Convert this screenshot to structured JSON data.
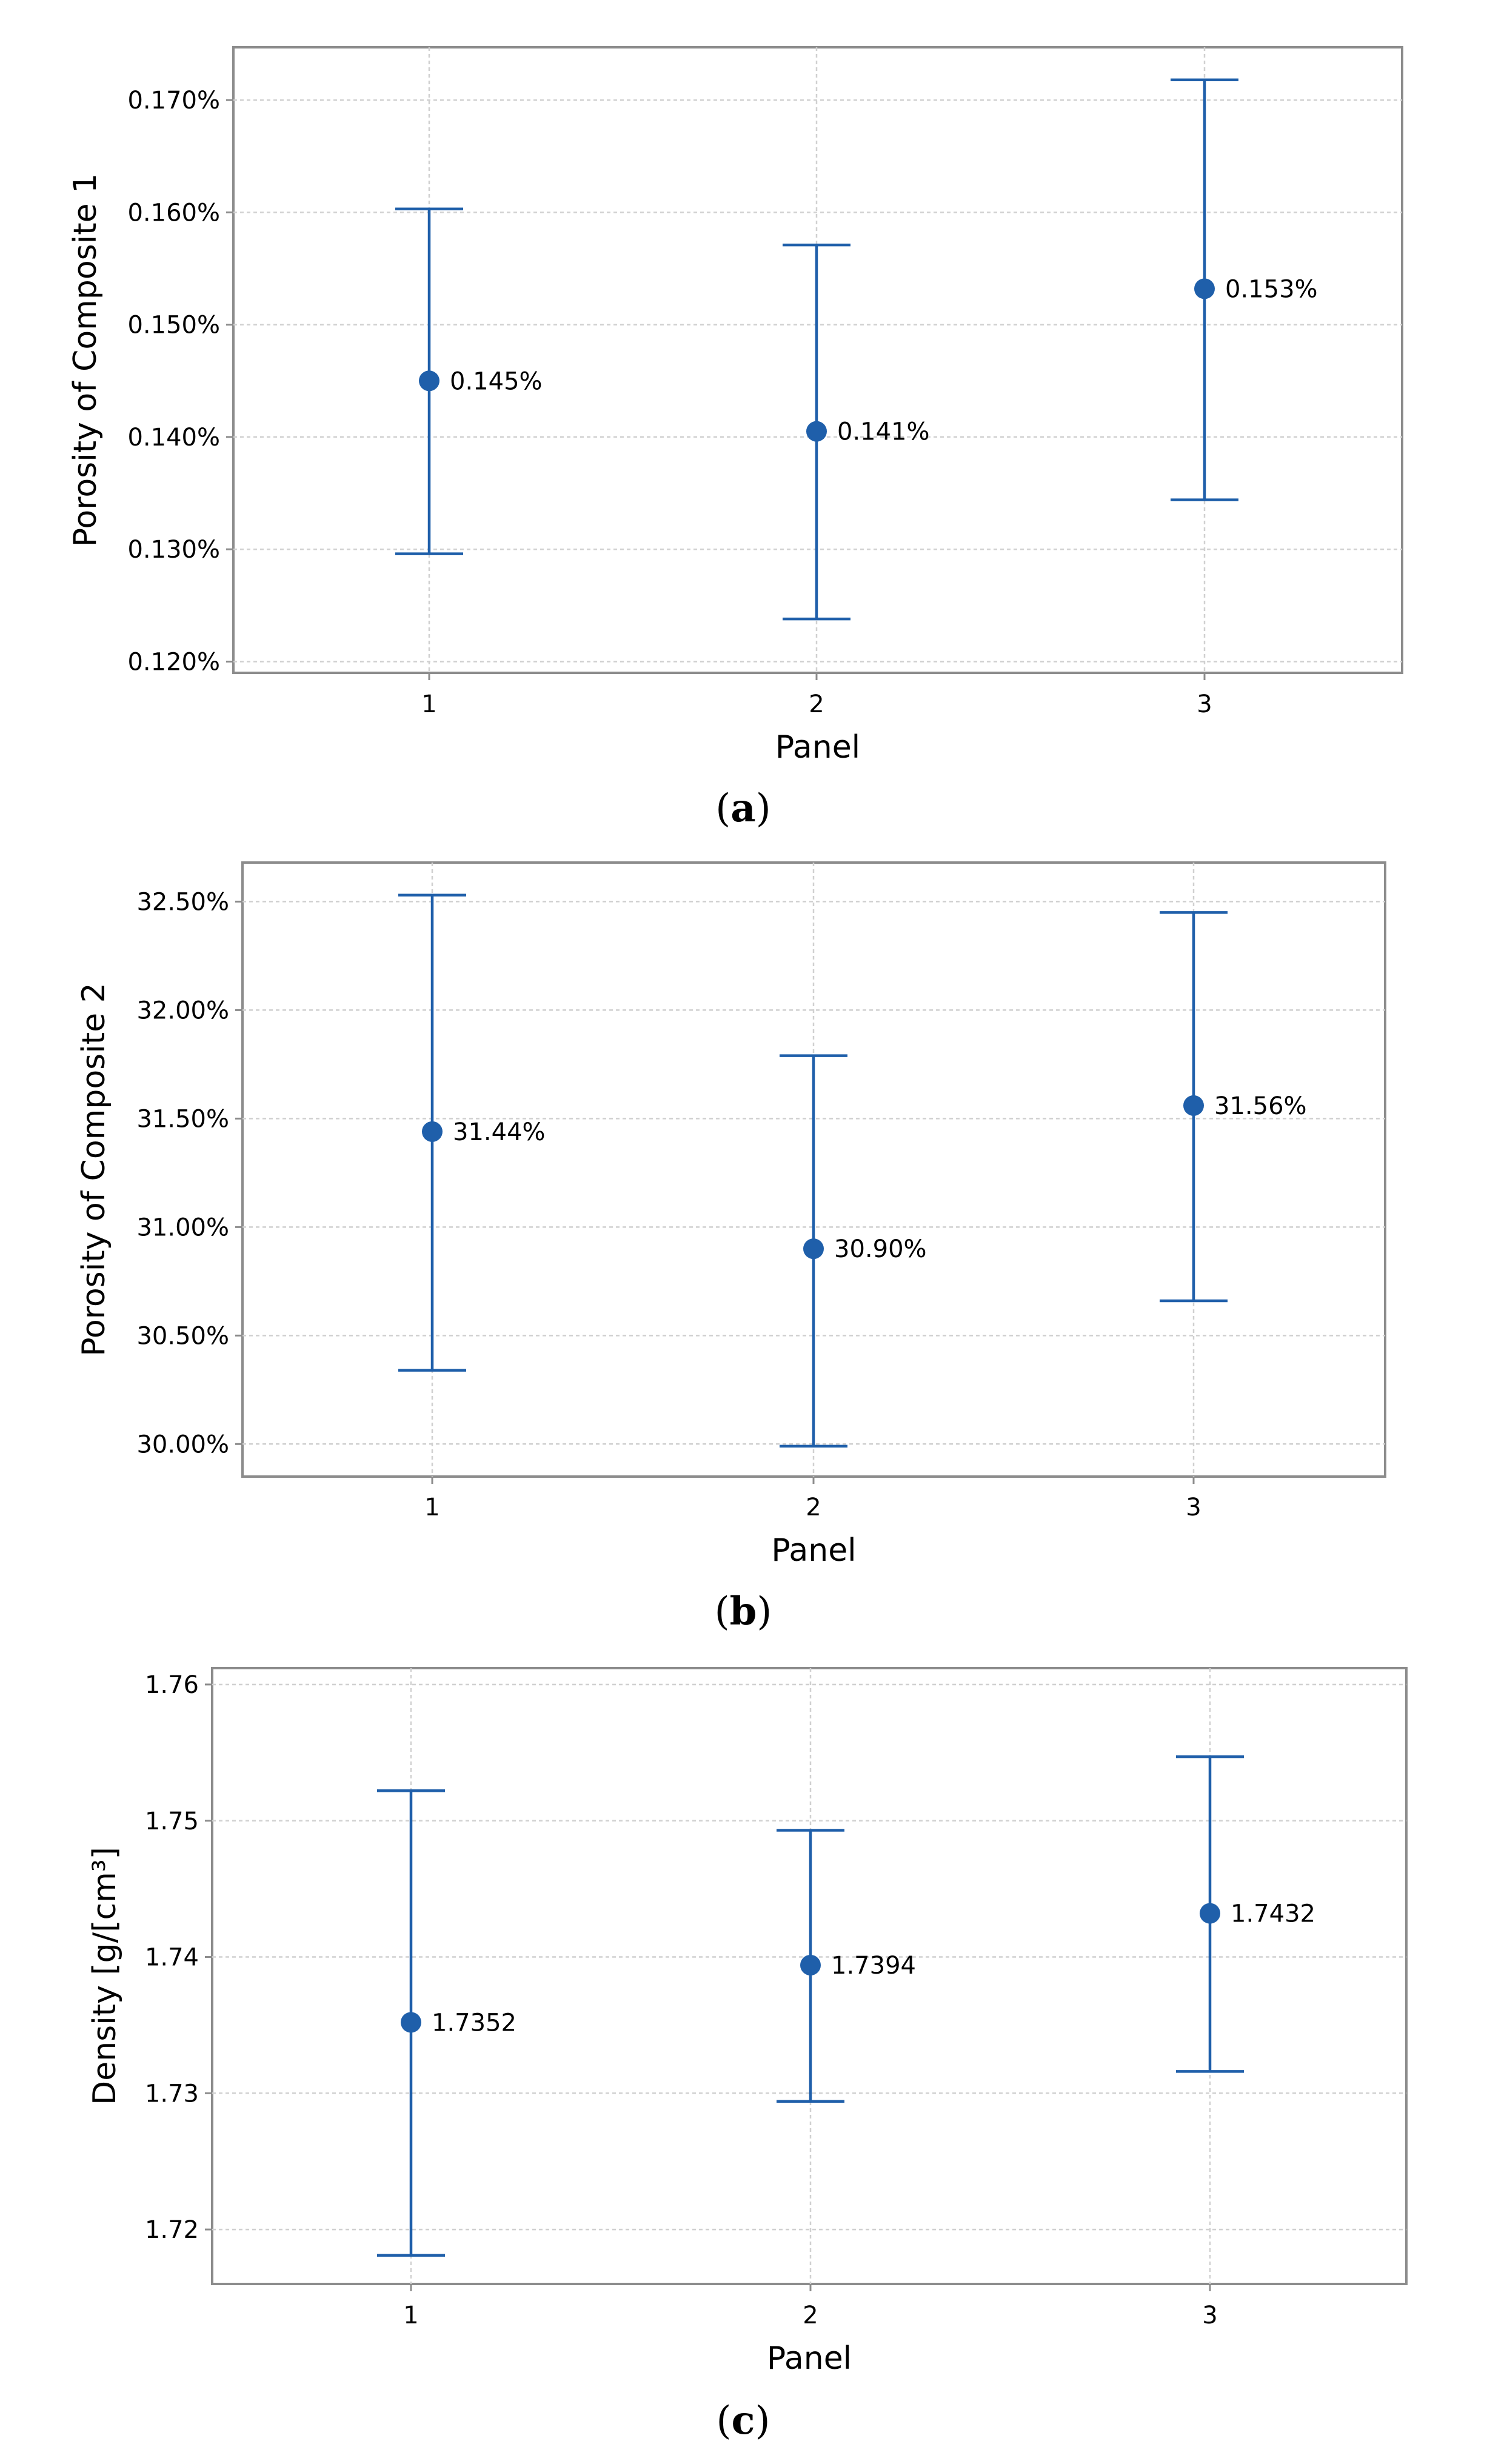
{
  "chart_data": [
    {
      "type": "scatter",
      "caption_letter": "a",
      "xlabel": "Panel",
      "ylabel": "Porosity of Composite 1",
      "categories": [
        "1",
        "2",
        "3"
      ],
      "means": [
        0.145,
        0.1405,
        0.1532
      ],
      "lower": [
        0.1296,
        0.1238,
        0.1344
      ],
      "upper": [
        0.1603,
        0.1571,
        0.1718
      ],
      "data_labels": [
        "0.145%",
        "0.141%",
        "0.153%"
      ],
      "ylim": [
        0.119,
        0.1747
      ],
      "yticks": [
        0.12,
        0.13,
        0.14,
        0.15,
        0.16,
        0.17
      ],
      "ytick_labels": [
        "0.120%",
        "0.130%",
        "0.140%",
        "0.150%",
        "0.160%",
        "0.170%"
      ]
    },
    {
      "type": "scatter",
      "caption_letter": "b",
      "xlabel": "Panel",
      "ylabel": "Porosity of Composite 2",
      "categories": [
        "1",
        "2",
        "3"
      ],
      "means": [
        31.44,
        30.9,
        31.56
      ],
      "lower": [
        30.34,
        29.99,
        30.66
      ],
      "upper": [
        32.53,
        31.79,
        32.45
      ],
      "data_labels": [
        "31.44%",
        "30.90%",
        "31.56%"
      ],
      "ylim": [
        29.85,
        32.68
      ],
      "yticks": [
        30.0,
        30.5,
        31.0,
        31.5,
        32.0,
        32.5
      ],
      "ytick_labels": [
        "30.00%",
        "30.50%",
        "31.00%",
        "31.50%",
        "32.00%",
        "32.50%"
      ]
    },
    {
      "type": "scatter",
      "caption_letter": "c",
      "xlabel": "Panel",
      "ylabel": "Density [g/[cm³]",
      "categories": [
        "1",
        "2",
        "3"
      ],
      "means": [
        1.7352,
        1.7394,
        1.7432
      ],
      "lower": [
        1.7181,
        1.7294,
        1.7316
      ],
      "upper": [
        1.7522,
        1.7493,
        1.7547
      ],
      "data_labels": [
        "1.7352",
        "1.7394",
        "1.7432"
      ],
      "ylim": [
        1.716,
        1.7612
      ],
      "yticks": [
        1.72,
        1.73,
        1.74,
        1.75,
        1.76
      ],
      "ytick_labels": [
        "1.72",
        "1.73",
        "1.74",
        "1.75",
        "1.76"
      ]
    }
  ],
  "colors": {
    "series": "#1f5faa",
    "frame": "#8c8c8c",
    "grid": "#d0d0d0"
  }
}
